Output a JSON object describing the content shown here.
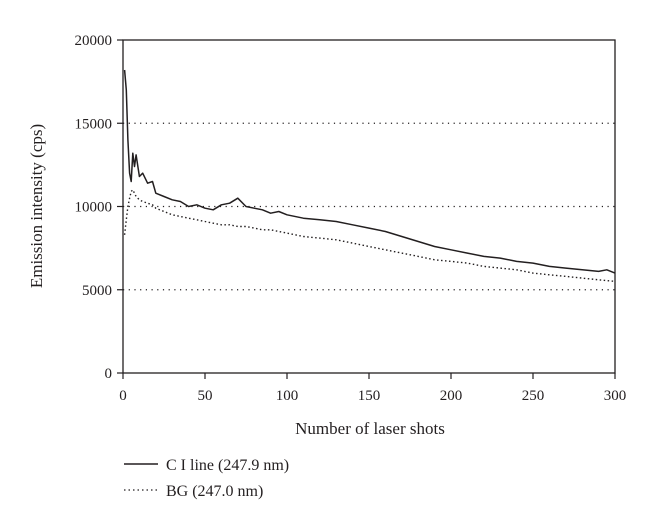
{
  "chart_data": {
    "type": "line",
    "xlabel": "Number of laser shots",
    "ylabel": "Emission intensity (cps)",
    "xlim": [
      0,
      300
    ],
    "ylim": [
      0,
      20000
    ],
    "x_ticks": [
      "0",
      "50",
      "100",
      "150",
      "200",
      "250",
      "300"
    ],
    "y_ticks": [
      "0",
      "5000",
      "10000",
      "15000",
      "20000"
    ],
    "gridlines_y": [
      5000,
      10000,
      15000
    ],
    "grid": "horizontal dotted at 5000, 10000, 15000",
    "legend_position": "bottom-left, below plot",
    "series": [
      {
        "name": "C I line (247.9 nm)",
        "style": "solid",
        "color": "#231f20",
        "x": [
          1,
          2,
          3,
          4,
          5,
          6,
          7,
          8,
          10,
          12,
          15,
          18,
          20,
          25,
          30,
          35,
          40,
          45,
          50,
          55,
          60,
          65,
          70,
          75,
          80,
          85,
          90,
          95,
          100,
          110,
          120,
          130,
          140,
          150,
          160,
          170,
          180,
          190,
          200,
          210,
          220,
          230,
          240,
          250,
          260,
          270,
          280,
          290,
          295,
          300
        ],
        "y": [
          18200,
          17000,
          14000,
          12000,
          11500,
          13200,
          12400,
          13100,
          11800,
          12000,
          11400,
          11500,
          10800,
          10600,
          10400,
          10300,
          10000,
          10100,
          9900,
          9800,
          10100,
          10200,
          10500,
          10000,
          9900,
          9800,
          9600,
          9700,
          9500,
          9300,
          9200,
          9100,
          8900,
          8700,
          8500,
          8200,
          7900,
          7600,
          7400,
          7200,
          7000,
          6900,
          6700,
          6600,
          6400,
          6300,
          6200,
          6100,
          6200,
          6000
        ]
      },
      {
        "name": "BG (247.0 nm)",
        "style": "dotted",
        "color": "#231f20",
        "x": [
          1,
          2,
          3,
          4,
          5,
          6,
          8,
          10,
          12,
          15,
          18,
          20,
          25,
          30,
          35,
          40,
          45,
          50,
          55,
          60,
          65,
          70,
          75,
          80,
          85,
          90,
          95,
          100,
          110,
          120,
          130,
          140,
          150,
          160,
          170,
          180,
          190,
          200,
          210,
          220,
          230,
          240,
          250,
          260,
          270,
          280,
          290,
          300
        ],
        "y": [
          8300,
          9200,
          10000,
          10500,
          10900,
          11000,
          10600,
          10400,
          10300,
          10200,
          10100,
          9900,
          9700,
          9500,
          9400,
          9300,
          9200,
          9100,
          9000,
          8900,
          8900,
          8800,
          8800,
          8700,
          8600,
          8600,
          8500,
          8400,
          8200,
          8100,
          8000,
          7800,
          7600,
          7400,
          7200,
          7000,
          6800,
          6700,
          6600,
          6400,
          6300,
          6200,
          6000,
          5900,
          5800,
          5700,
          5600,
          5500
        ]
      }
    ]
  }
}
